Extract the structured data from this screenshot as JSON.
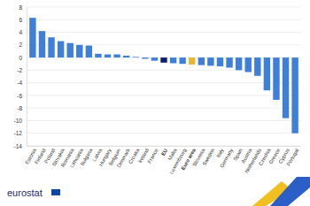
{
  "chart_data": {
    "type": "bar",
    "categories": [
      "Estonia",
      "Finland",
      "Poland",
      "Slovakia",
      "Romania",
      "Lithuania",
      "Bulgaria",
      "Latvia",
      "Hungary",
      "Belgium",
      "Denmark",
      "Croatia",
      "Ireland",
      "France",
      "EU",
      "Malta",
      "Luxembourg",
      "Euro area",
      "Slovenia",
      "Sweden",
      "Italy",
      "Germany",
      "Spain",
      "Austria",
      "Netherlands",
      "Czechia",
      "Greece",
      "Cyprus",
      "Portugal"
    ],
    "values": [
      6.3,
      4.2,
      3.2,
      2.6,
      2.3,
      2.0,
      1.9,
      0.6,
      0.5,
      0.5,
      0.3,
      0.1,
      -0.2,
      -0.5,
      -0.8,
      -0.9,
      -1.0,
      -1.1,
      -1.2,
      -1.3,
      -1.4,
      -1.6,
      -2.0,
      -2.3,
      -2.9,
      -5.2,
      -6.7,
      -9.6,
      -12.0
    ],
    "colors": [
      "#3d7fd9",
      "#3d7fd9",
      "#3d7fd9",
      "#3d7fd9",
      "#3d7fd9",
      "#3d7fd9",
      "#3d7fd9",
      "#3d7fd9",
      "#3d7fd9",
      "#3d7fd9",
      "#3d7fd9",
      "#3d7fd9",
      "#3d7fd9",
      "#3d7fd9",
      "#0e1e6e",
      "#3d7fd9",
      "#3d7fd9",
      "#e8b52e",
      "#3d7fd9",
      "#3d7fd9",
      "#3d7fd9",
      "#3d7fd9",
      "#3d7fd9",
      "#3d7fd9",
      "#3d7fd9",
      "#3d7fd9",
      "#3d7fd9",
      "#3d7fd9",
      "#3d7fd9"
    ],
    "ylim": [
      -14,
      8
    ],
    "yticks": [
      -14,
      -12,
      -10,
      -8,
      -6,
      -4,
      -2,
      0,
      2,
      4,
      6,
      8
    ],
    "grid": true,
    "footer": "eurostat"
  }
}
